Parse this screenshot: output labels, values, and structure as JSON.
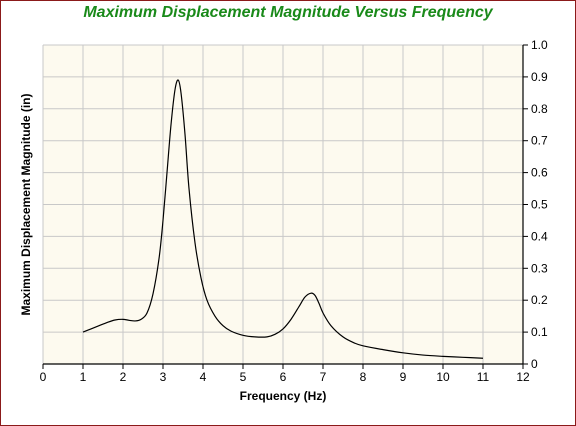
{
  "chart_data": {
    "type": "line",
    "title": "Maximum Displacement Magnitude Versus Frequency",
    "xlabel": "Frequency (Hz)",
    "ylabel": "Maximum Displacement Magnitude (in)",
    "xlim": [
      0,
      12
    ],
    "ylim": [
      0,
      1.0
    ],
    "x_ticks": [
      "0",
      "1",
      "2",
      "3",
      "4",
      "5",
      "6",
      "7",
      "8",
      "9",
      "10",
      "11",
      "12"
    ],
    "y_ticks": [
      "0",
      "0.1",
      "0.2",
      "0.3",
      "0.4",
      "0.5",
      "0.6",
      "0.7",
      "0.8",
      "0.9",
      "1.0"
    ],
    "grid": true,
    "y_axis_side": "right",
    "series": [
      {
        "color": "#000000",
        "x": [
          1.0,
          1.2,
          1.4,
          1.6,
          1.8,
          2.0,
          2.15,
          2.3,
          2.45,
          2.6,
          2.75,
          2.9,
          3.0,
          3.1,
          3.2,
          3.3,
          3.38,
          3.45,
          3.55,
          3.65,
          3.8,
          3.95,
          4.1,
          4.3,
          4.5,
          4.7,
          5.0,
          5.3,
          5.6,
          5.8,
          6.0,
          6.2,
          6.4,
          6.55,
          6.7,
          6.8,
          6.9,
          7.0,
          7.2,
          7.5,
          7.8,
          8.0,
          8.5,
          9.0,
          9.5,
          10.0,
          10.5,
          11.0
        ],
        "y": [
          0.1,
          0.11,
          0.12,
          0.13,
          0.138,
          0.14,
          0.137,
          0.135,
          0.14,
          0.16,
          0.22,
          0.33,
          0.45,
          0.6,
          0.75,
          0.86,
          0.89,
          0.85,
          0.72,
          0.55,
          0.38,
          0.27,
          0.2,
          0.15,
          0.12,
          0.103,
          0.09,
          0.085,
          0.085,
          0.093,
          0.11,
          0.14,
          0.18,
          0.21,
          0.222,
          0.215,
          0.19,
          0.16,
          0.12,
          0.085,
          0.065,
          0.057,
          0.045,
          0.035,
          0.028,
          0.024,
          0.021,
          0.018
        ]
      }
    ],
    "colors": {
      "title": "#1a8a1a",
      "plot_background": "#fdfaef",
      "grid": "#c8c8c8",
      "frame": "#8b1a1a"
    }
  }
}
